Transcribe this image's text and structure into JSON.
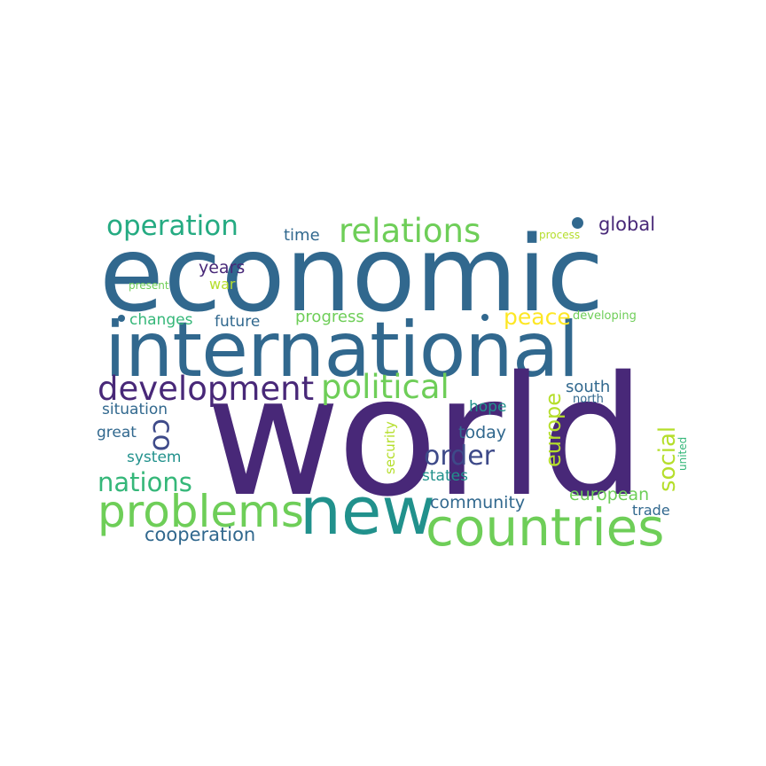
{
  "words": {
    "economic": {
      "text": "economic",
      "color": "#31688e"
    },
    "international": {
      "text": "international",
      "color": "#31688e"
    },
    "world": {
      "text": "world",
      "color": "#482878"
    },
    "new": {
      "text": "new",
      "color": "#21918c"
    },
    "countries": {
      "text": "countries",
      "color": "#6ece58"
    },
    "problems": {
      "text": "problems",
      "color": "#6ece58"
    },
    "development": {
      "text": "development",
      "color": "#482878"
    },
    "political": {
      "text": "political",
      "color": "#6ece58"
    },
    "operation": {
      "text": "operation",
      "color": "#25ab82"
    },
    "relations": {
      "text": "relations",
      "color": "#6ece58"
    },
    "nations": {
      "text": "nations",
      "color": "#35b779"
    },
    "co": {
      "text": "co",
      "color": "#3e4a89"
    },
    "order": {
      "text": "order",
      "color": "#3e4a89"
    },
    "social": {
      "text": "social",
      "color": "#b5de2b"
    },
    "europe": {
      "text": "europe",
      "color": "#b5de2b"
    },
    "peace": {
      "text": "peace",
      "color": "#fde725"
    },
    "global": {
      "text": "global",
      "color": "#482878"
    },
    "community": {
      "text": "community",
      "color": "#31688e"
    },
    "cooperation": {
      "text": "cooperation",
      "color": "#31688e"
    },
    "european": {
      "text": "european",
      "color": "#6ece58"
    },
    "time": {
      "text": "time",
      "color": "#31688e"
    },
    "years": {
      "text": "years",
      "color": "#482878"
    },
    "war": {
      "text": "war",
      "color": "#b5de2b"
    },
    "progress": {
      "text": "progress",
      "color": "#6ece58"
    },
    "changes": {
      "text": "changes",
      "color": "#35b779"
    },
    "future": {
      "text": "future",
      "color": "#31688e"
    },
    "south": {
      "text": "south",
      "color": "#31688e"
    },
    "north": {
      "text": "north",
      "color": "#31688e"
    },
    "hope": {
      "text": "hope",
      "color": "#21918c"
    },
    "today": {
      "text": "today",
      "color": "#31688e"
    },
    "situation": {
      "text": "situation",
      "color": "#31688e"
    },
    "great": {
      "text": "great",
      "color": "#31688e"
    },
    "system": {
      "text": "system",
      "color": "#21918c"
    },
    "states": {
      "text": "states",
      "color": "#21918c"
    },
    "security": {
      "text": "security",
      "color": "#b5de2b"
    },
    "trade": {
      "text": "trade",
      "color": "#31688e"
    },
    "united": {
      "text": "united",
      "color": "#35b779"
    },
    "present": {
      "text": "present",
      "color": "#6ece58"
    },
    "process": {
      "text": "process",
      "color": "#b5de2b"
    },
    "developing": {
      "text": "developing",
      "color": "#6ece58"
    }
  },
  "dots": [
    {
      "color": "#31688e"
    },
    {
      "color": "#31688e"
    },
    {
      "color": "#31688e"
    }
  ]
}
